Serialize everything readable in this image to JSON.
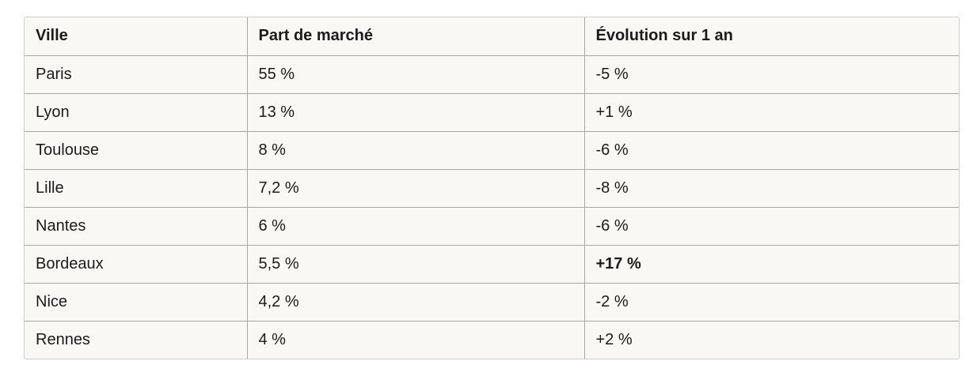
{
  "table": {
    "headers": [
      "Ville",
      "Part de marché",
      "Évolution sur 1 an"
    ],
    "rows": [
      [
        "Paris",
        "55 %",
        "-5 %"
      ],
      [
        "Lyon",
        "13 %",
        "+1 %"
      ],
      [
        "Toulouse",
        "8 %",
        "-6 %"
      ],
      [
        "Lille",
        "7,2 %",
        "-8 %"
      ],
      [
        "Nantes",
        "6 %",
        "-6 %"
      ],
      [
        "Bordeaux",
        "5,5 %",
        "+17 %"
      ],
      [
        "Nice",
        "4,2 %",
        "-2 %"
      ],
      [
        "Rennes",
        "4 %",
        "+2 %"
      ]
    ]
  }
}
